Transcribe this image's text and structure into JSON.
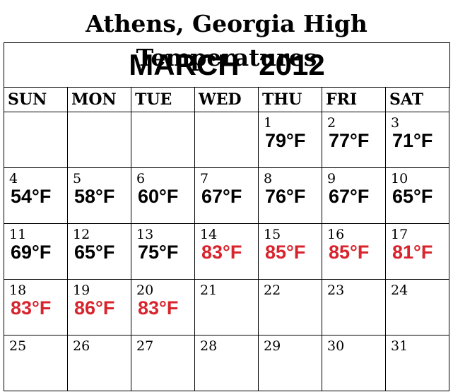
{
  "title": "Athens, Georgia High Temperatures",
  "month_label": "MARCH  2012",
  "hot_color": "#d8242d",
  "weekdays": [
    "SUN",
    "MON",
    "TUE",
    "WED",
    "THU",
    "FRI",
    "SAT"
  ],
  "weeks": [
    [
      {
        "day": "",
        "temp": ""
      },
      {
        "day": "",
        "temp": ""
      },
      {
        "day": "",
        "temp": ""
      },
      {
        "day": "",
        "temp": ""
      },
      {
        "day": "1",
        "temp": "79°F",
        "hot": false
      },
      {
        "day": "2",
        "temp": "77°F",
        "hot": false
      },
      {
        "day": "3",
        "temp": "71°F",
        "hot": false
      }
    ],
    [
      {
        "day": "4",
        "temp": "54°F",
        "hot": false
      },
      {
        "day": "5",
        "temp": "58°F",
        "hot": false
      },
      {
        "day": "6",
        "temp": "60°F",
        "hot": false
      },
      {
        "day": "7",
        "temp": "67°F",
        "hot": false
      },
      {
        "day": "8",
        "temp": "76°F",
        "hot": false
      },
      {
        "day": "9",
        "temp": "67°F",
        "hot": false
      },
      {
        "day": "10",
        "temp": "65°F",
        "hot": false
      }
    ],
    [
      {
        "day": "11",
        "temp": "69°F",
        "hot": false
      },
      {
        "day": "12",
        "temp": "65°F",
        "hot": false
      },
      {
        "day": "13",
        "temp": "75°F",
        "hot": false
      },
      {
        "day": "14",
        "temp": "83°F",
        "hot": true
      },
      {
        "day": "15",
        "temp": "85°F",
        "hot": true
      },
      {
        "day": "16",
        "temp": "85°F",
        "hot": true
      },
      {
        "day": "17",
        "temp": "81°F",
        "hot": true
      }
    ],
    [
      {
        "day": "18",
        "temp": "83°F",
        "hot": true
      },
      {
        "day": "19",
        "temp": "86°F",
        "hot": true
      },
      {
        "day": "20",
        "temp": "83°F",
        "hot": true
      },
      {
        "day": "21",
        "temp": ""
      },
      {
        "day": "22",
        "temp": ""
      },
      {
        "day": "23",
        "temp": ""
      },
      {
        "day": "24",
        "temp": ""
      }
    ],
    [
      {
        "day": "25",
        "temp": ""
      },
      {
        "day": "26",
        "temp": ""
      },
      {
        "day": "27",
        "temp": ""
      },
      {
        "day": "28",
        "temp": ""
      },
      {
        "day": "29",
        "temp": ""
      },
      {
        "day": "30",
        "temp": ""
      },
      {
        "day": "31",
        "temp": ""
      }
    ]
  ]
}
